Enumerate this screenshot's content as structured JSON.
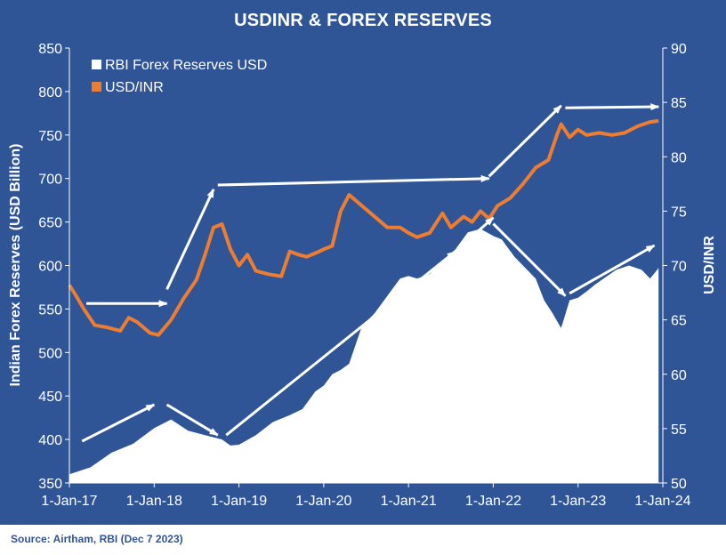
{
  "colors": {
    "background": "#2F5597",
    "reserves_fill": "#ffffff",
    "usdinr_line": "#ED7D31",
    "text": "#ffffff",
    "source_text": "#2F5597"
  },
  "source": "Source: Airtham, RBI (Dec 7 2023)",
  "chart_data": {
    "type": "area",
    "title": "USDINR & FOREX RESERVES",
    "ylabel_left": "Indian Forex Reserves (USD Billion)",
    "ylabel_right": "USD/INR",
    "ylim_left": [
      350,
      850
    ],
    "ylim_right": [
      50,
      90
    ],
    "yticks_left": [
      350,
      400,
      450,
      500,
      550,
      600,
      650,
      700,
      750,
      800,
      850
    ],
    "yticks_right": [
      50,
      55,
      60,
      65,
      70,
      75,
      80,
      85,
      90
    ],
    "xlim": [
      2017.0,
      2024.0
    ],
    "xticks": [
      {
        "t": 2017.0,
        "label": "1-Jan-17"
      },
      {
        "t": 2018.0,
        "label": "1-Jan-18"
      },
      {
        "t": 2019.0,
        "label": "1-Jan-19"
      },
      {
        "t": 2020.0,
        "label": "1-Jan-20"
      },
      {
        "t": 2021.0,
        "label": "1-Jan-21"
      },
      {
        "t": 2022.0,
        "label": "1-Jan-22"
      },
      {
        "t": 2023.0,
        "label": "1-Jan-23"
      },
      {
        "t": 2024.0,
        "label": "1-Jan-24"
      }
    ],
    "grid": false,
    "legend_position": "top-left",
    "series": [
      {
        "name": "RBI Forex Reserves USD",
        "kind": "area",
        "axis": "left",
        "points": [
          [
            2017.0,
            360
          ],
          [
            2017.25,
            368
          ],
          [
            2017.5,
            385
          ],
          [
            2017.75,
            395
          ],
          [
            2018.0,
            413
          ],
          [
            2018.2,
            423
          ],
          [
            2018.4,
            410
          ],
          [
            2018.6,
            405
          ],
          [
            2018.8,
            400
          ],
          [
            2018.9,
            393
          ],
          [
            2019.0,
            394
          ],
          [
            2019.2,
            405
          ],
          [
            2019.4,
            420
          ],
          [
            2019.6,
            428
          ],
          [
            2019.75,
            435
          ],
          [
            2019.9,
            455
          ],
          [
            2020.0,
            462
          ],
          [
            2020.1,
            475
          ],
          [
            2020.2,
            480
          ],
          [
            2020.3,
            487
          ],
          [
            2020.45,
            530
          ],
          [
            2020.6,
            545
          ],
          [
            2020.75,
            565
          ],
          [
            2020.9,
            585
          ],
          [
            2021.0,
            588
          ],
          [
            2021.1,
            585
          ],
          [
            2021.25,
            590
          ],
          [
            2021.4,
            605
          ],
          [
            2021.55,
            618
          ],
          [
            2021.7,
            638
          ],
          [
            2021.85,
            642
          ],
          [
            2022.0,
            634
          ],
          [
            2022.1,
            630
          ],
          [
            2022.25,
            610
          ],
          [
            2022.4,
            595
          ],
          [
            2022.5,
            585
          ],
          [
            2022.6,
            560
          ],
          [
            2022.7,
            545
          ],
          [
            2022.8,
            528
          ],
          [
            2022.9,
            560
          ],
          [
            2023.0,
            563
          ],
          [
            2023.1,
            570
          ],
          [
            2023.2,
            578
          ],
          [
            2023.3,
            585
          ],
          [
            2023.45,
            595
          ],
          [
            2023.6,
            600
          ],
          [
            2023.75,
            595
          ],
          [
            2023.85,
            585
          ],
          [
            2023.95,
            597
          ]
        ]
      },
      {
        "name": "USD/INR",
        "kind": "line",
        "axis": "right",
        "points": [
          [
            2017.0,
            68.2
          ],
          [
            2017.08,
            67.2
          ],
          [
            2017.17,
            66.0
          ],
          [
            2017.3,
            64.5
          ],
          [
            2017.45,
            64.3
          ],
          [
            2017.6,
            64.0
          ],
          [
            2017.7,
            65.2
          ],
          [
            2017.8,
            64.8
          ],
          [
            2017.95,
            63.8
          ],
          [
            2018.05,
            63.6
          ],
          [
            2018.2,
            65.0
          ],
          [
            2018.35,
            67.0
          ],
          [
            2018.5,
            68.7
          ],
          [
            2018.6,
            71.0
          ],
          [
            2018.7,
            73.5
          ],
          [
            2018.8,
            73.8
          ],
          [
            2018.9,
            71.5
          ],
          [
            2019.0,
            70.0
          ],
          [
            2019.1,
            71.0
          ],
          [
            2019.2,
            69.5
          ],
          [
            2019.35,
            69.2
          ],
          [
            2019.5,
            69.0
          ],
          [
            2019.6,
            71.3
          ],
          [
            2019.7,
            71.0
          ],
          [
            2019.8,
            70.8
          ],
          [
            2019.95,
            71.3
          ],
          [
            2020.0,
            71.5
          ],
          [
            2020.1,
            71.8
          ],
          [
            2020.2,
            75.0
          ],
          [
            2020.3,
            76.5
          ],
          [
            2020.45,
            75.5
          ],
          [
            2020.6,
            74.5
          ],
          [
            2020.75,
            73.5
          ],
          [
            2020.9,
            73.5
          ],
          [
            2021.0,
            73.0
          ],
          [
            2021.1,
            72.6
          ],
          [
            2021.25,
            73.0
          ],
          [
            2021.4,
            74.8
          ],
          [
            2021.5,
            73.5
          ],
          [
            2021.65,
            74.5
          ],
          [
            2021.75,
            74.0
          ],
          [
            2021.85,
            75.0
          ],
          [
            2021.95,
            74.3
          ],
          [
            2022.05,
            75.5
          ],
          [
            2022.2,
            76.2
          ],
          [
            2022.35,
            77.5
          ],
          [
            2022.5,
            79.0
          ],
          [
            2022.65,
            79.7
          ],
          [
            2022.75,
            82.0
          ],
          [
            2022.8,
            83.0
          ],
          [
            2022.9,
            81.8
          ],
          [
            2023.0,
            82.5
          ],
          [
            2023.1,
            82.0
          ],
          [
            2023.25,
            82.2
          ],
          [
            2023.4,
            82.0
          ],
          [
            2023.55,
            82.2
          ],
          [
            2023.7,
            82.8
          ],
          [
            2023.85,
            83.2
          ],
          [
            2023.95,
            83.3
          ]
        ]
      }
    ],
    "annotations": {
      "type": "trend-arrows",
      "reserves_arrows": [
        [
          [
            2017.15,
            398
          ],
          [
            2018.0,
            440
          ]
        ],
        [
          [
            2018.15,
            440
          ],
          [
            2018.75,
            405
          ]
        ],
        [
          [
            2018.85,
            405
          ],
          [
            2021.55,
            616
          ]
        ],
        [
          [
            2021.55,
            616
          ],
          [
            2022.0,
            655
          ]
        ],
        [
          [
            2022.0,
            648
          ],
          [
            2022.85,
            565
          ]
        ],
        [
          [
            2022.9,
            568
          ],
          [
            2023.9,
            623
          ]
        ]
      ],
      "usdinr_arrows": [
        [
          [
            2017.2,
            66.5
          ],
          [
            2018.15,
            66.5
          ]
        ],
        [
          [
            2018.15,
            67.8
          ],
          [
            2018.7,
            77.0
          ]
        ],
        [
          [
            2018.75,
            77.4
          ],
          [
            2021.95,
            78.0
          ]
        ],
        [
          [
            2021.95,
            78.2
          ],
          [
            2022.8,
            84.7
          ]
        ],
        [
          [
            2022.85,
            84.5
          ],
          [
            2023.95,
            84.6
          ]
        ]
      ]
    }
  }
}
